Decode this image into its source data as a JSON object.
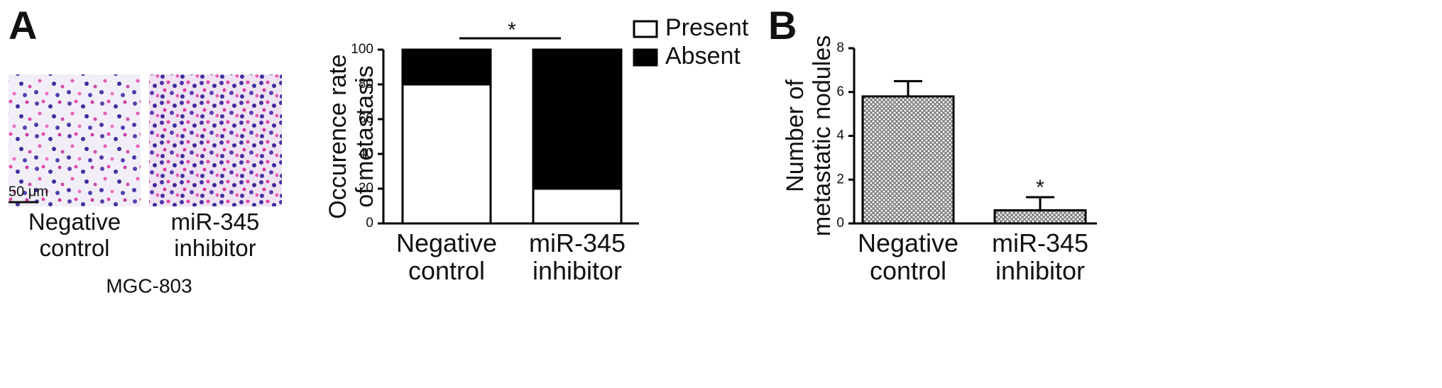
{
  "figure": {
    "panel_labels": [
      "A",
      "B"
    ],
    "images": [
      {
        "caption": "Negative control"
      },
      {
        "caption": "miR-345 inhibitor"
      }
    ],
    "scale_bar": "50 μm",
    "cell_line": "MGC-803"
  },
  "chart_data": [
    {
      "type": "stacked_bar",
      "y_label": "Occurence rate of metastasis",
      "categories": [
        "Negative control",
        "miR-345 inhibitor"
      ],
      "series": [
        {
          "name": "Present",
          "color": "#ffffff",
          "values": [
            80,
            20
          ]
        },
        {
          "name": "Absent",
          "color": "#000000",
          "values": [
            20,
            80
          ]
        }
      ],
      "ylim": [
        0,
        100
      ],
      "yticks": [
        0,
        20,
        40,
        60,
        80,
        100
      ],
      "legend": "upper right",
      "annotation": "*"
    },
    {
      "type": "bar",
      "y_label": "Number of metastatic nodules",
      "categories": [
        "Negative control",
        "miR-345 inhibitor"
      ],
      "values": [
        5.8,
        0.6
      ],
      "errors": [
        0.7,
        0.6
      ],
      "color": "#7a7a7a",
      "ylim": [
        0,
        8
      ],
      "yticks": [
        0,
        2,
        4,
        6,
        8
      ],
      "annotation": "*"
    }
  ]
}
